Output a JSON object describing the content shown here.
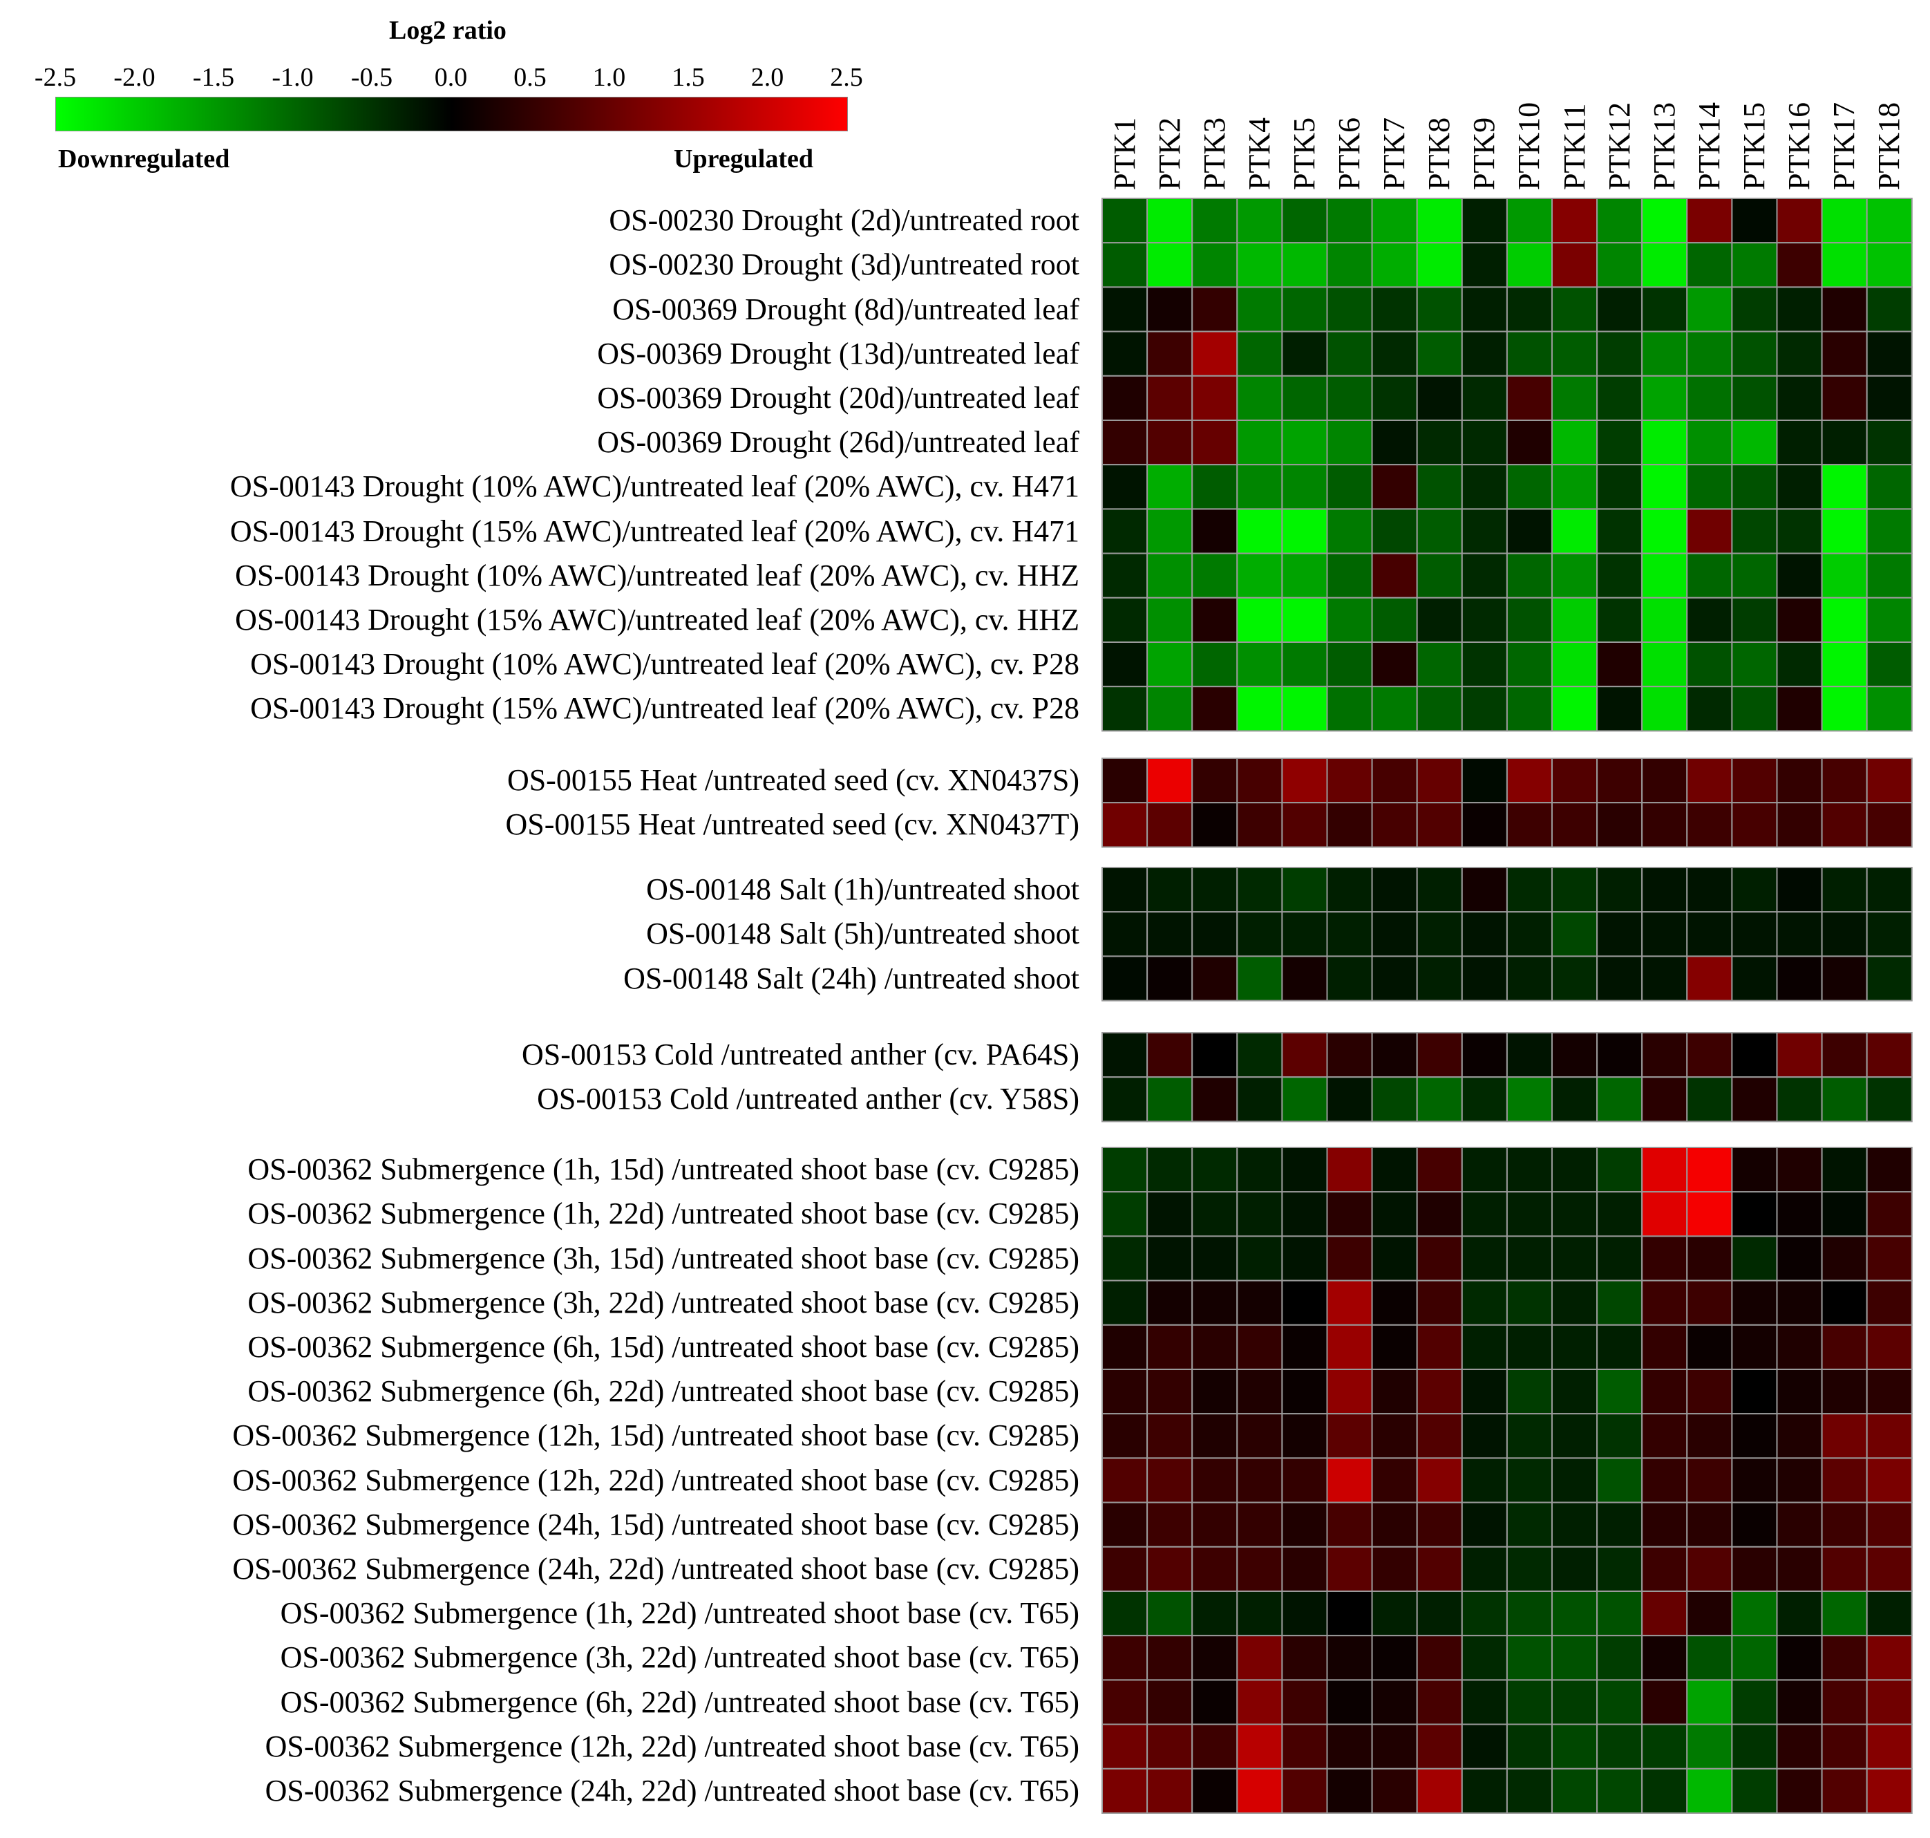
{
  "chart_data": {
    "type": "heatmap",
    "legend": {
      "title": "Log2 ratio",
      "ticks": [
        "-2.5",
        "-2.0",
        "-1.5",
        "-1.0",
        "-0.5",
        "0.0",
        "0.5",
        "1.0",
        "1.5",
        "2.0",
        "2.5"
      ],
      "min": -2.5,
      "max": 2.5,
      "low_label": "Downregulated",
      "high_label": "Upregulated",
      "low_color": "#00ff00",
      "mid_color": "#000000",
      "high_color": "#ff0000"
    },
    "columns": [
      "PTK1",
      "PTK2",
      "PTK3",
      "PTK4",
      "PTK5",
      "PTK6",
      "PTK7",
      "PTK8",
      "PTK9",
      "PTK10",
      "PTK11",
      "PTK12",
      "PTK13",
      "PTK14",
      "PTK15",
      "PTK16",
      "PTK17",
      "PTK18"
    ],
    "groups": [
      {
        "name": "Drought",
        "rows": [
          {
            "label": "OS-00230 Drought (2d)/untreated root",
            "values": [
              -0.9,
              -2.3,
              -1.2,
              -1.5,
              -1.0,
              -1.2,
              -1.6,
              -2.3,
              -0.3,
              -1.5,
              1.3,
              -1.3,
              -2.4,
              1.2,
              -0.1,
              1.1,
              -2.2,
              -1.9
            ]
          },
          {
            "label": "OS-00230 Drought (3d)/untreated root",
            "values": [
              -0.9,
              -2.3,
              -1.3,
              -1.8,
              -1.8,
              -1.3,
              -1.7,
              -2.3,
              -0.3,
              -2.0,
              1.2,
              -1.3,
              -2.3,
              -1.0,
              -1.2,
              0.6,
              -2.2,
              -1.9
            ]
          },
          {
            "label": "OS-00369 Drought (8d)/untreated leaf",
            "values": [
              -0.2,
              0.2,
              0.5,
              -1.2,
              -1.0,
              -0.8,
              -0.5,
              -0.8,
              -0.3,
              -0.4,
              -0.8,
              -0.3,
              -0.5,
              -1.5,
              -0.6,
              -0.3,
              0.3,
              -0.6
            ]
          },
          {
            "label": "OS-00369 Drought (13d)/untreated leaf",
            "values": [
              -0.2,
              0.6,
              1.6,
              -1.0,
              -0.3,
              -0.8,
              -0.4,
              -0.9,
              -0.3,
              -0.8,
              -0.9,
              -0.6,
              -1.3,
              -1.2,
              -0.8,
              -0.4,
              0.4,
              -0.2
            ]
          },
          {
            "label": "OS-00369 Drought (20d)/untreated leaf",
            "values": [
              0.3,
              0.9,
              1.2,
              -1.3,
              -1.0,
              -0.9,
              -0.5,
              -0.2,
              -0.4,
              0.7,
              -1.2,
              -0.6,
              -1.6,
              -1.1,
              -0.8,
              -0.3,
              0.5,
              -0.2
            ]
          },
          {
            "label": "OS-00369 Drought (26d)/untreated leaf",
            "values": [
              0.5,
              0.8,
              1.0,
              -1.5,
              -1.6,
              -1.3,
              -0.2,
              -0.4,
              -0.4,
              0.3,
              -1.8,
              -0.6,
              -2.3,
              -1.4,
              -1.8,
              -0.3,
              -0.3,
              -0.5
            ]
          },
          {
            "label": "OS-00143 Drought (10% AWC)/untreated leaf (20% AWC), cv. H471",
            "values": [
              -0.2,
              -1.7,
              -0.9,
              -1.3,
              -1.3,
              -0.9,
              0.5,
              -0.8,
              -0.4,
              -1.0,
              -1.5,
              -0.5,
              -2.4,
              -1.0,
              -0.8,
              -0.3,
              -2.4,
              -1.0
            ]
          },
          {
            "label": "OS-00143 Drought (15% AWC)/untreated leaf (20% AWC), cv. H471",
            "values": [
              -0.4,
              -1.5,
              0.2,
              -2.4,
              -2.4,
              -1.2,
              -0.7,
              -0.9,
              -0.4,
              -0.2,
              -2.3,
              -0.5,
              -2.4,
              1.1,
              -0.7,
              -0.5,
              -2.4,
              -1.2
            ]
          },
          {
            "label": "OS-00143 Drought (10% AWC)/untreated leaf (20% AWC), cv. HHZ",
            "values": [
              -0.4,
              -1.4,
              -1.2,
              -1.7,
              -1.6,
              -1.0,
              0.7,
              -0.9,
              -0.4,
              -1.0,
              -1.4,
              -0.5,
              -2.3,
              -1.0,
              -1.0,
              -0.2,
              -2.0,
              -1.2
            ]
          },
          {
            "label": "OS-00143 Drought (15% AWC)/untreated leaf (20% AWC), cv. HHZ",
            "values": [
              -0.4,
              -1.4,
              0.3,
              -2.4,
              -2.4,
              -1.2,
              -0.9,
              -0.3,
              -0.4,
              -0.8,
              -2.0,
              -0.5,
              -2.2,
              -0.3,
              -0.6,
              0.3,
              -2.4,
              -1.3
            ]
          },
          {
            "label": "OS-00143 Drought (10% AWC)/untreated leaf (20% AWC), cv. P28",
            "values": [
              -0.2,
              -1.6,
              -1.0,
              -1.4,
              -1.2,
              -0.9,
              0.3,
              -1.0,
              -0.5,
              -1.0,
              -2.2,
              0.3,
              -2.2,
              -0.8,
              -1.0,
              -0.4,
              -2.4,
              -0.9
            ]
          },
          {
            "label": "OS-00143 Drought (15% AWC)/untreated leaf (20% AWC), cv. P28",
            "values": [
              -0.5,
              -1.3,
              0.4,
              -2.4,
              -2.4,
              -1.1,
              -1.2,
              -0.9,
              -0.6,
              -1.0,
              -2.4,
              -0.2,
              -2.2,
              -0.4,
              -0.8,
              0.3,
              -2.4,
              -1.4
            ]
          }
        ]
      },
      {
        "name": "Heat",
        "rows": [
          {
            "label": "OS-00155 Heat /untreated seed (cv. XN0437S)",
            "values": [
              0.4,
              2.3,
              0.5,
              0.7,
              1.4,
              1.0,
              0.7,
              1.0,
              -0.1,
              1.3,
              0.8,
              0.6,
              0.5,
              1.1,
              0.8,
              0.5,
              0.7,
              1.1
            ]
          },
          {
            "label": "OS-00155 Heat /untreated seed (cv. XN0437T)",
            "values": [
              1.1,
              0.9,
              0.1,
              0.6,
              0.8,
              0.5,
              0.7,
              0.8,
              0.1,
              0.6,
              0.6,
              0.4,
              0.5,
              0.6,
              0.7,
              0.5,
              0.8,
              0.7
            ]
          }
        ]
      },
      {
        "name": "Salt",
        "rows": [
          {
            "label": "OS-00148 Salt (1h)/untreated shoot",
            "values": [
              -0.2,
              -0.3,
              -0.3,
              -0.4,
              -0.6,
              -0.3,
              -0.2,
              -0.3,
              0.2,
              -0.4,
              -0.5,
              -0.3,
              -0.2,
              -0.2,
              -0.3,
              -0.1,
              -0.3,
              -0.3
            ]
          },
          {
            "label": "OS-00148 Salt (5h)/untreated shoot",
            "values": [
              -0.2,
              -0.2,
              -0.2,
              -0.3,
              -0.3,
              -0.3,
              -0.2,
              -0.3,
              -0.2,
              -0.3,
              -0.7,
              -0.2,
              -0.2,
              -0.2,
              -0.2,
              -0.2,
              -0.2,
              -0.3
            ]
          },
          {
            "label": "OS-00148 Salt (24h) /untreated shoot",
            "values": [
              -0.1,
              0.1,
              0.3,
              -0.9,
              0.2,
              -0.3,
              -0.2,
              -0.3,
              -0.2,
              -0.3,
              -0.4,
              -0.2,
              -0.2,
              1.3,
              -0.2,
              0.1,
              0.2,
              -0.4
            ]
          }
        ]
      },
      {
        "name": "Cold",
        "rows": [
          {
            "label": "OS-00153 Cold /untreated anther (cv. PA64S)",
            "values": [
              -0.2,
              0.6,
              0.0,
              -0.4,
              0.9,
              0.4,
              0.2,
              0.6,
              0.1,
              -0.2,
              0.2,
              0.1,
              0.4,
              0.6,
              0.0,
              1.1,
              0.6,
              0.9
            ]
          },
          {
            "label": "OS-00153 Cold /untreated anther (cv. Y58S)",
            "values": [
              -0.3,
              -0.9,
              0.3,
              -0.3,
              -1.0,
              -0.2,
              -0.7,
              -1.0,
              -0.4,
              -1.2,
              -0.3,
              -1.0,
              0.4,
              -0.5,
              0.3,
              -0.5,
              -0.9,
              -0.5
            ]
          }
        ]
      },
      {
        "name": "Submergence",
        "rows": [
          {
            "label": "OS-00362 Submergence (1h, 15d) /untreated shoot base (cv. C9285)",
            "values": [
              -0.6,
              -0.4,
              -0.4,
              -0.3,
              -0.2,
              1.3,
              -0.2,
              0.7,
              -0.3,
              -0.3,
              -0.3,
              -0.6,
              2.2,
              2.4,
              0.2,
              0.3,
              -0.2,
              0.3
            ]
          },
          {
            "label": "OS-00362 Submergence (1h, 22d) /untreated shoot base (cv. C9285)",
            "values": [
              -0.6,
              -0.2,
              -0.3,
              -0.3,
              -0.2,
              0.4,
              -0.2,
              0.3,
              -0.3,
              -0.3,
              -0.3,
              -0.3,
              2.2,
              2.4,
              0.0,
              0.1,
              -0.1,
              0.6
            ]
          },
          {
            "label": "OS-00362 Submergence (3h, 15d) /untreated shoot base (cv. C9285)",
            "values": [
              -0.4,
              -0.2,
              -0.2,
              -0.3,
              -0.2,
              0.6,
              -0.2,
              0.6,
              -0.3,
              -0.3,
              -0.3,
              -0.3,
              0.5,
              0.4,
              -0.4,
              0.1,
              0.3,
              0.7
            ]
          },
          {
            "label": "OS-00362 Submergence (3h, 22d) /untreated shoot base (cv. C9285)",
            "values": [
              -0.3,
              0.2,
              0.2,
              0.2,
              0.0,
              1.6,
              0.1,
              0.6,
              -0.4,
              -0.5,
              -0.3,
              -0.7,
              0.6,
              0.6,
              0.2,
              0.2,
              0.0,
              0.6
            ]
          },
          {
            "label": "OS-00362 Submergence (6h, 15d) /untreated shoot base (cv. C9285)",
            "values": [
              0.3,
              0.5,
              0.4,
              0.5,
              0.1,
              1.5,
              0.1,
              0.8,
              -0.3,
              -0.3,
              -0.3,
              -0.3,
              0.5,
              0.1,
              0.2,
              0.3,
              0.7,
              0.9
            ]
          },
          {
            "label": "OS-00362 Submergence (6h, 22d) /untreated shoot base (cv. C9285)",
            "values": [
              0.4,
              0.5,
              0.2,
              0.3,
              0.1,
              1.4,
              0.3,
              0.9,
              -0.2,
              -0.6,
              -0.3,
              -0.9,
              0.5,
              0.6,
              0.0,
              0.2,
              0.3,
              0.4
            ]
          },
          {
            "label": "OS-00362 Submergence (12h, 15d) /untreated shoot base (cv. C9285)",
            "values": [
              0.4,
              0.6,
              0.3,
              0.4,
              0.2,
              0.9,
              0.4,
              0.8,
              -0.2,
              -0.4,
              -0.3,
              -0.5,
              0.5,
              0.4,
              0.1,
              0.3,
              1.1,
              1.1
            ]
          },
          {
            "label": "OS-00362 Submergence (12h, 22d) /untreated shoot base (cv. C9285)",
            "values": [
              0.8,
              0.8,
              0.5,
              0.5,
              0.5,
              2.0,
              0.5,
              1.3,
              -0.3,
              -0.4,
              -0.3,
              -0.8,
              0.5,
              0.6,
              0.2,
              0.3,
              0.9,
              1.2
            ]
          },
          {
            "label": "OS-00362 Submergence (24h, 15d) /untreated shoot base (cv. C9285)",
            "values": [
              0.4,
              0.6,
              0.5,
              0.5,
              0.3,
              0.7,
              0.4,
              0.6,
              -0.2,
              -0.4,
              -0.3,
              -0.3,
              0.4,
              0.4,
              0.1,
              0.4,
              0.6,
              0.8
            ]
          },
          {
            "label": "OS-00362 Submergence (24h, 22d) /untreated shoot base (cv. C9285)",
            "values": [
              0.6,
              0.8,
              0.6,
              0.6,
              0.4,
              0.9,
              0.5,
              0.8,
              -0.3,
              -0.4,
              -0.3,
              -0.4,
              0.6,
              0.8,
              0.4,
              0.4,
              0.8,
              0.9
            ]
          },
          {
            "label": "OS-00362 Submergence (1h, 22d) /untreated shoot base (cv. T65)",
            "values": [
              -0.5,
              -0.8,
              -0.3,
              -0.3,
              -0.2,
              0.0,
              -0.3,
              -0.3,
              -0.5,
              -0.7,
              -0.8,
              -0.8,
              1.0,
              0.3,
              -1.1,
              -0.3,
              -1.0,
              -0.3
            ]
          },
          {
            "label": "OS-00362 Submergence (3h, 22d) /untreated shoot base (cv. T65)",
            "values": [
              0.6,
              0.5,
              0.2,
              1.2,
              0.4,
              0.2,
              0.1,
              0.6,
              -0.4,
              -0.8,
              -0.8,
              -0.6,
              0.2,
              -0.8,
              -1.0,
              0.1,
              0.6,
              1.2
            ]
          },
          {
            "label": "OS-00362 Submergence (6h, 22d) /untreated shoot base (cv. T65)",
            "values": [
              0.7,
              0.5,
              0.1,
              1.3,
              0.6,
              0.1,
              0.2,
              0.7,
              -0.3,
              -0.6,
              -0.6,
              -0.7,
              0.4,
              -1.6,
              -0.6,
              0.2,
              0.7,
              1.1
            ]
          },
          {
            "label": "OS-00362 Submergence (12h, 22d) /untreated shoot base (cv. T65)",
            "values": [
              1.1,
              0.9,
              0.6,
              1.8,
              0.7,
              0.3,
              0.3,
              0.9,
              -0.2,
              -0.5,
              -0.7,
              -0.6,
              -0.6,
              -1.2,
              -0.5,
              0.4,
              0.7,
              1.3
            ]
          },
          {
            "label": "OS-00362 Submergence (24h, 22d) /untreated shoot base (cv. T65)",
            "values": [
              1.2,
              1.1,
              0.1,
              2.1,
              0.8,
              0.2,
              0.4,
              1.6,
              -0.3,
              -0.4,
              -0.7,
              -0.7,
              -0.5,
              -1.8,
              -0.6,
              0.4,
              0.8,
              1.4
            ]
          }
        ]
      }
    ]
  }
}
